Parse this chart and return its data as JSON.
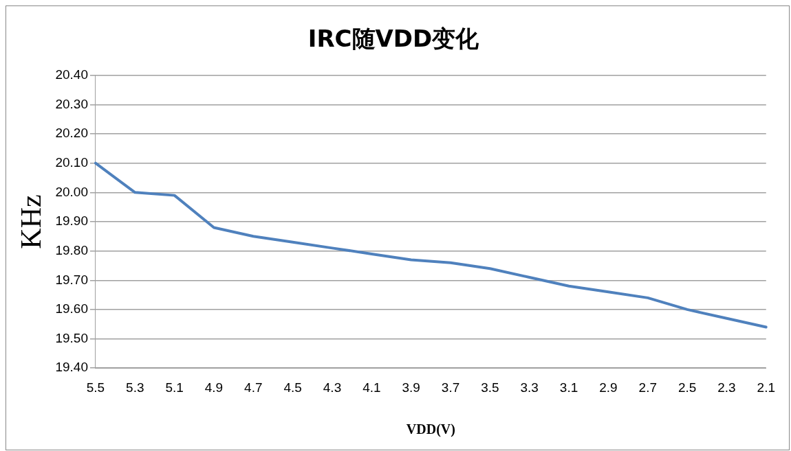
{
  "chart_data": {
    "type": "line",
    "title": "IRC随VDD变化",
    "xlabel": "VDD(V)",
    "ylabel": "KHz",
    "categories": [
      "5.5",
      "5.3",
      "5.1",
      "4.9",
      "4.7",
      "4.5",
      "4.3",
      "4.1",
      "3.9",
      "3.7",
      "3.5",
      "3.3",
      "3.1",
      "2.9",
      "2.7",
      "2.5",
      "2.3",
      "2.1"
    ],
    "series": [
      {
        "color": "#4f81bd",
        "values": [
          20.1,
          20.0,
          19.99,
          19.88,
          19.85,
          19.83,
          19.81,
          19.79,
          19.77,
          19.76,
          19.74,
          19.71,
          19.68,
          19.66,
          19.64,
          19.6,
          19.57,
          19.54
        ]
      }
    ],
    "ylim": [
      19.4,
      20.4
    ],
    "yticks": [
      {
        "value": 19.4,
        "label": "19.40"
      },
      {
        "value": 19.5,
        "label": "19.50"
      },
      {
        "value": 19.6,
        "label": "19.60"
      },
      {
        "value": 19.7,
        "label": "19.70"
      },
      {
        "value": 19.8,
        "label": "19.80"
      },
      {
        "value": 19.9,
        "label": "19.90"
      },
      {
        "value": 20.0,
        "label": "20.00"
      },
      {
        "value": 20.1,
        "label": "20.10"
      },
      {
        "value": 20.2,
        "label": "20.20"
      },
      {
        "value": 20.3,
        "label": "20.30"
      },
      {
        "value": 20.4,
        "label": "20.40"
      }
    ],
    "grid": "y",
    "legend": false,
    "marker": "none",
    "line_style": "solid"
  }
}
